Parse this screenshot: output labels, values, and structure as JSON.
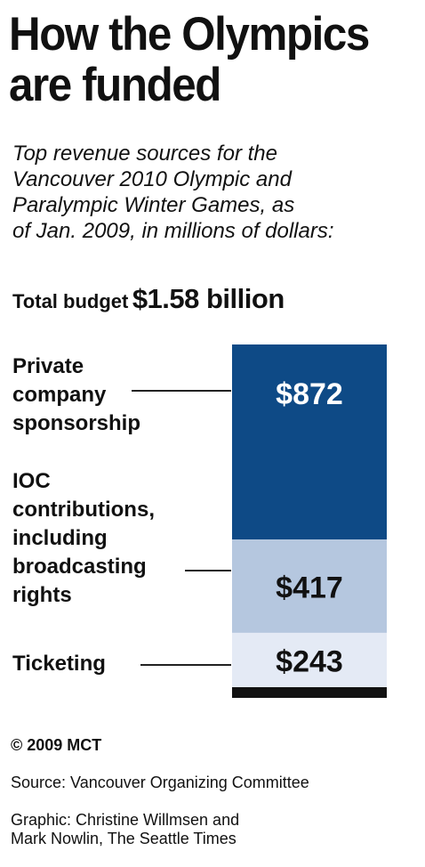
{
  "title": "How the Olympics\nare funded",
  "subtitle": "Top revenue sources for the\nVancouver 2010 Olympic and\nParalympic Winter Games, as\nof Jan. 2009, in millions of dollars:",
  "budget": {
    "label": "Total budget",
    "value": "$1.58 billion"
  },
  "chart_data": {
    "type": "bar",
    "stacked": true,
    "categories": [
      "Private company sponsorship",
      "IOC contributions, including broadcasting rights",
      "Ticketing"
    ],
    "values": [
      872,
      417,
      243
    ],
    "value_labels": [
      "$872",
      "$417",
      "$243"
    ],
    "colors": [
      "#0e4a86",
      "#b5c7df",
      "#e4eaf5"
    ],
    "label_colors": [
      "#ffffff",
      "#111111",
      "#111111"
    ],
    "base_color": "#111111"
  },
  "labels": [
    "Private\ncompany\nsponsorship",
    "IOC\ncontributions,\nincluding\nbroadcasting\nrights",
    "Ticketing"
  ],
  "footer": {
    "credit": "© 2009 MCT",
    "source": "Source: Vancouver Organizing Committee",
    "graphic": "Graphic: Christine Willmsen and\nMark Nowlin, The Seattle Times"
  }
}
